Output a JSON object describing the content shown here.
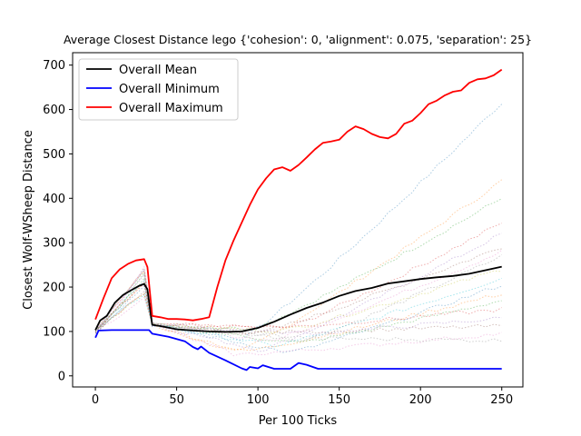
{
  "chart_data": {
    "type": "line",
    "title": "Average Closest Distance lego {'cohesion': 0, 'alignment': 0.075, 'separation': 25}",
    "xlabel": "Per 100 Ticks",
    "ylabel": "Closest Wolf-WSheep Distance",
    "xlim": [
      -14,
      263
    ],
    "ylim": [
      -25,
      728
    ],
    "xticks": [
      0,
      50,
      100,
      150,
      200,
      250
    ],
    "yticks": [
      0,
      100,
      200,
      300,
      400,
      500,
      600,
      700
    ],
    "grid": false,
    "legend_position": "top-left",
    "series": [
      {
        "name": "Overall Mean",
        "color": "#000000",
        "x": [
          0,
          3,
          7,
          12,
          17,
          22,
          27,
          30,
          32,
          35,
          40,
          50,
          60,
          70,
          80,
          90,
          100,
          110,
          120,
          130,
          140,
          150,
          160,
          170,
          180,
          190,
          200,
          210,
          220,
          230,
          240,
          250
        ],
        "y": [
          103,
          125,
          135,
          165,
          182,
          193,
          203,
          207,
          195,
          115,
          112,
          105,
          102,
          100,
          99,
          100,
          108,
          122,
          138,
          153,
          165,
          180,
          191,
          198,
          208,
          213,
          218,
          222,
          225,
          230,
          238,
          246
        ]
      },
      {
        "name": "Overall Minimum",
        "color": "#0000ff",
        "x": [
          0,
          2,
          10,
          20,
          30,
          33,
          35,
          45,
          55,
          60,
          63,
          65,
          70,
          80,
          90,
          93,
          95,
          100,
          103,
          110,
          120,
          125,
          130,
          137,
          140,
          150,
          200,
          250
        ],
        "y": [
          86,
          102,
          103,
          103,
          103,
          103,
          95,
          88,
          78,
          65,
          60,
          66,
          52,
          35,
          17,
          13,
          20,
          17,
          24,
          16,
          16,
          29,
          25,
          16,
          16,
          16,
          16,
          16
        ]
      },
      {
        "name": "Overall Maximum",
        "color": "#ff0000",
        "x": [
          0,
          5,
          10,
          15,
          20,
          25,
          30,
          32,
          35,
          40,
          45,
          50,
          55,
          60,
          65,
          70,
          75,
          80,
          85,
          90,
          95,
          100,
          105,
          110,
          115,
          120,
          125,
          130,
          135,
          140,
          145,
          150,
          155,
          160,
          165,
          170,
          175,
          180,
          185,
          190,
          195,
          200,
          205,
          210,
          215,
          220,
          225,
          230,
          235,
          240,
          245,
          250
        ],
        "y": [
          127,
          175,
          220,
          240,
          252,
          260,
          263,
          245,
          135,
          132,
          128,
          128,
          127,
          125,
          128,
          132,
          200,
          260,
          305,
          345,
          385,
          420,
          445,
          465,
          470,
          462,
          475,
          492,
          510,
          525,
          528,
          532,
          550,
          562,
          556,
          545,
          538,
          535,
          545,
          568,
          575,
          592,
          612,
          620,
          632,
          640,
          643,
          660,
          668,
          670,
          677,
          690
        ]
      }
    ]
  }
}
